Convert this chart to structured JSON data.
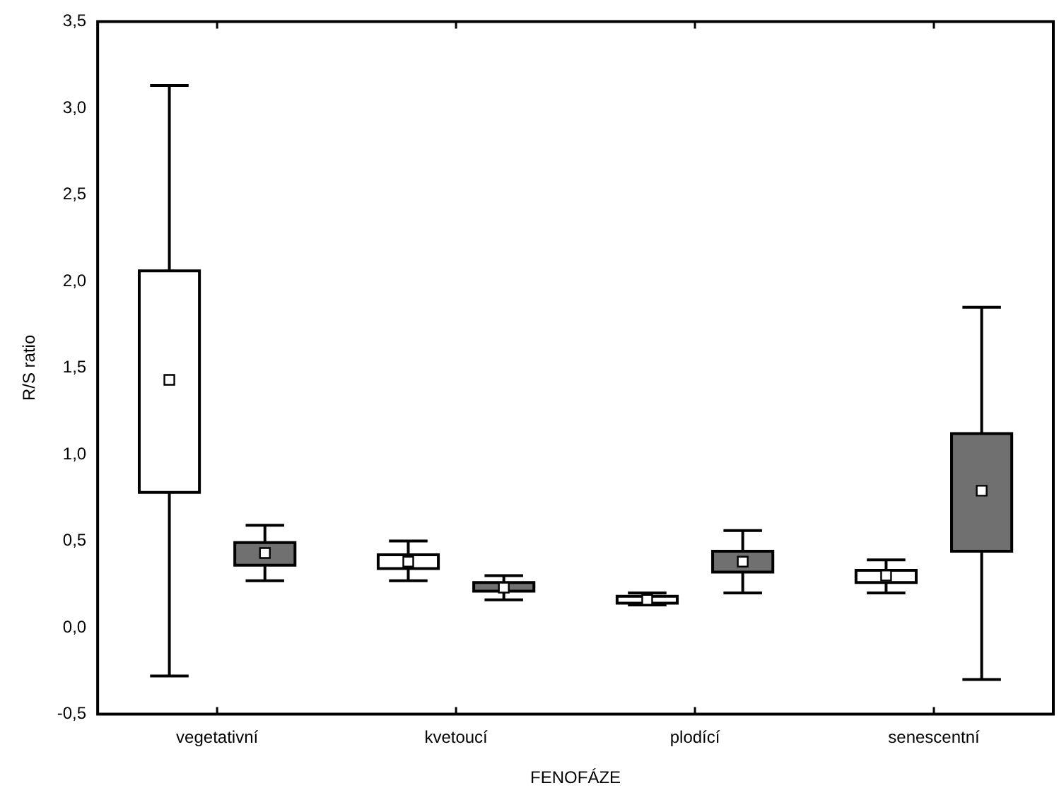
{
  "chart_data": {
    "type": "box",
    "xlabel": "FENOFÁZE",
    "ylabel": "R/S ratio",
    "categories": [
      "vegetativní",
      "kvetoucí",
      "plodící",
      "senescentní"
    ],
    "series": [
      {
        "color": "#ffffff",
        "boxes": [
          {
            "low": -0.28,
            "q1": 0.78,
            "median": 1.43,
            "q3": 2.06,
            "high": 3.13
          },
          {
            "low": 0.27,
            "q1": 0.34,
            "median": 0.38,
            "q3": 0.42,
            "high": 0.5
          },
          {
            "low": 0.13,
            "q1": 0.14,
            "median": 0.16,
            "q3": 0.18,
            "high": 0.2
          },
          {
            "low": 0.2,
            "q1": 0.26,
            "median": 0.3,
            "q3": 0.33,
            "high": 0.39
          }
        ]
      },
      {
        "color": "#707070",
        "boxes": [
          {
            "low": 0.27,
            "q1": 0.36,
            "median": 0.43,
            "q3": 0.49,
            "high": 0.59
          },
          {
            "low": 0.16,
            "q1": 0.21,
            "median": 0.23,
            "q3": 0.26,
            "high": 0.3
          },
          {
            "low": 0.2,
            "q1": 0.32,
            "median": 0.38,
            "q3": 0.44,
            "high": 0.56
          },
          {
            "low": -0.3,
            "q1": 0.44,
            "median": 0.79,
            "q3": 1.12,
            "high": 1.85
          }
        ]
      }
    ],
    "ylim": [
      -0.5,
      3.5
    ],
    "yticks": [
      {
        "value": -0.5,
        "label": "-0,5"
      },
      {
        "value": 0,
        "label": "0,0"
      },
      {
        "value": 0.5,
        "label": "0,5"
      },
      {
        "value": 1,
        "label": "1,0"
      },
      {
        "value": 1.5,
        "label": "1,5"
      },
      {
        "value": 2,
        "label": "2,0"
      },
      {
        "value": 2.5,
        "label": "2,5"
      },
      {
        "value": 3,
        "label": "3,0"
      },
      {
        "value": 3.5,
        "label": "3,5"
      }
    ],
    "grid": false,
    "legend": false
  }
}
